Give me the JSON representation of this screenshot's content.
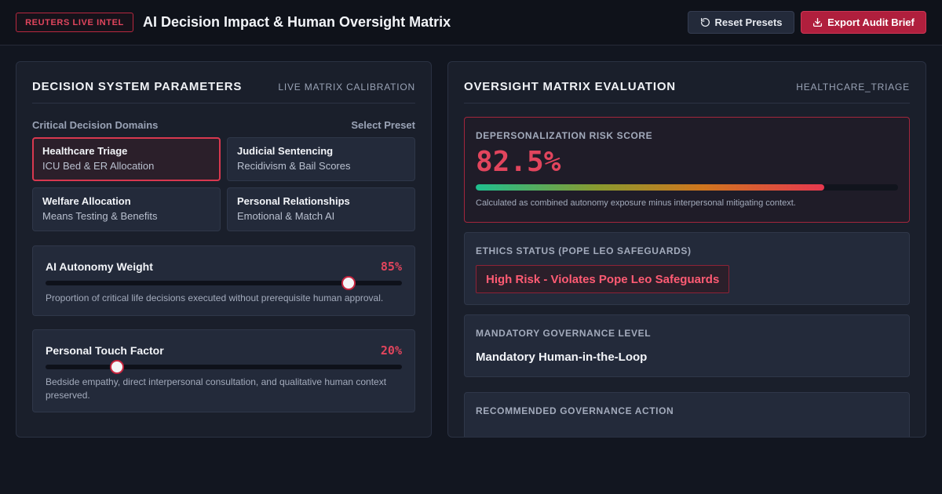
{
  "header": {
    "badge": "REUTERS LIVE INTEL",
    "title": "AI Decision Impact & Human Oversight Matrix",
    "reset_label": "Reset Presets",
    "export_label": "Export Audit Brief"
  },
  "left_panel": {
    "title": "DECISION SYSTEM PARAMETERS",
    "subtitle": "LIVE MATRIX CALIBRATION",
    "domains_label": "Critical Decision Domains",
    "preset_action": "Select Preset",
    "presets": [
      {
        "title": "Healthcare Triage",
        "desc": "ICU Bed & ER Allocation",
        "active": true
      },
      {
        "title": "Judicial Sentencing",
        "desc": "Recidivism & Bail Scores",
        "active": false
      },
      {
        "title": "Welfare Allocation",
        "desc": "Means Testing & Benefits",
        "active": false
      },
      {
        "title": "Personal Relationships",
        "desc": "Emotional & Match AI",
        "active": false
      }
    ],
    "sliders": [
      {
        "label": "AI Autonomy Weight",
        "value_text": "85%",
        "level": 0.85,
        "desc": "Proportion of critical life decisions executed without prerequisite human approval."
      },
      {
        "label": "Personal Touch Factor",
        "value_text": "20%",
        "level": 0.2,
        "desc": "Bedside empathy, direct interpersonal consultation, and qualitative human context preserved."
      }
    ]
  },
  "right_panel": {
    "title": "OVERSIGHT MATRIX EVALUATION",
    "subtitle": "HEALTHCARE_TRIAGE",
    "risk": {
      "label": "DEPERSONALIZATION RISK SCORE",
      "value_text": "82.5%",
      "level": 0.825,
      "note": "Calculated as combined autonomy exposure minus interpersonal mitigating context."
    },
    "ethics": {
      "label": "ETHICS STATUS (POPE LEO SAFEGUARDS)",
      "status": "High Risk - Violates Pope Leo Safeguards"
    },
    "governance": {
      "label": "MANDATORY GOVERNANCE LEVEL",
      "value": "Mandatory Human-in-the-Loop"
    },
    "action": {
      "label": "RECOMMENDED GOVERNANCE ACTION"
    }
  },
  "colors": {
    "accent": "#e2455d",
    "export_button": "#b01f3d",
    "background": "#121620"
  },
  "icons": {
    "reset": "rotate-ccw-icon",
    "export": "download-icon"
  }
}
